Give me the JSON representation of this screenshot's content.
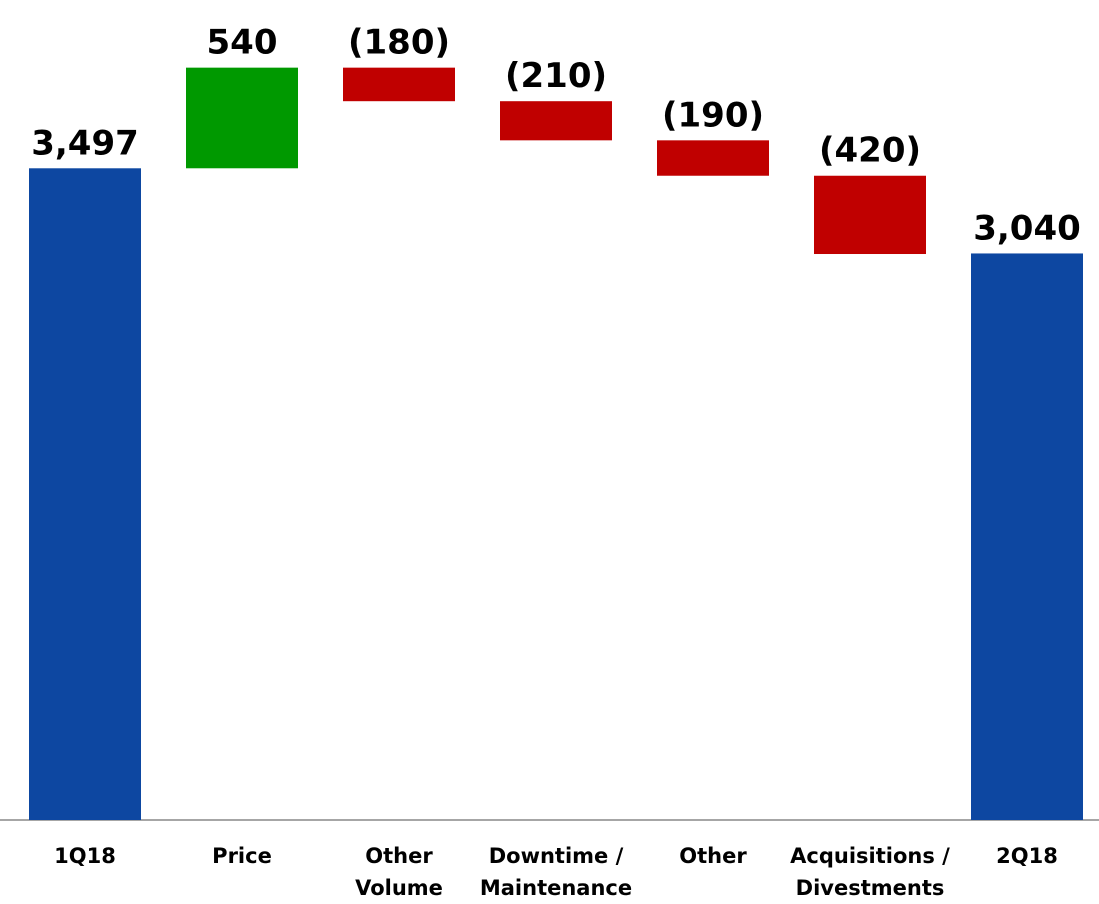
{
  "chart_data": {
    "type": "waterfall",
    "categories": [
      "1Q18",
      "Price",
      "Other\nVolume",
      "Downtime /\nMaintenance",
      "Other",
      "Acquisitions /\nDivestments",
      "2Q18"
    ],
    "values": [
      3497,
      540,
      -180,
      -210,
      -190,
      -420,
      3040
    ],
    "value_labels": [
      "3,497",
      "540",
      "(180)",
      "(210)",
      "(190)",
      "(420)",
      "3,040"
    ],
    "is_total": [
      true,
      false,
      false,
      false,
      false,
      false,
      true
    ],
    "colors": {
      "total": "#0d47a1",
      "increase": "#009900",
      "decrease": "#c00000"
    },
    "ylim": [
      0,
      4400
    ]
  }
}
